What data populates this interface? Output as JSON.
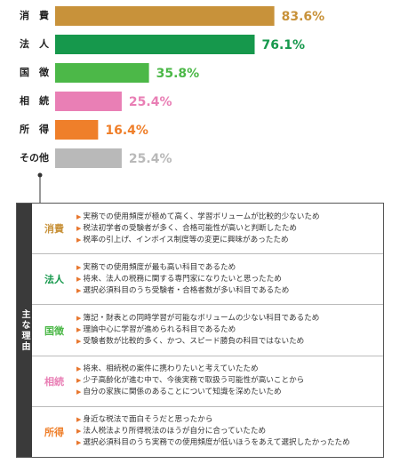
{
  "chart_data": {
    "type": "bar",
    "orientation": "horizontal",
    "categories": [
      "消　費",
      "法　人",
      "国　徴",
      "相　続",
      "所　得",
      "その他"
    ],
    "values": [
      83.6,
      76.1,
      35.8,
      25.4,
      16.4,
      25.4
    ],
    "value_labels": [
      "83.6%",
      "76.1%",
      "35.8%",
      "25.4%",
      "16.4%",
      "25.4%"
    ],
    "colors": [
      "#c8923a",
      "#16984c",
      "#4cb848",
      "#e97fb5",
      "#ef7f2a",
      "#b9b9b9"
    ]
  },
  "reasons": {
    "title": "主な理由",
    "groups": [
      {
        "label": "消費",
        "items": [
          "実務での使用頻度が極めて高く、学習ボリュームが比較的少ないため",
          "税法初学者の受験者が多く、合格可能性が高いと判断したため",
          "税率の引上げ、インボイス制度等の変更に興味があったため"
        ]
      },
      {
        "label": "法人",
        "items": [
          "実務での使用頻度が最も高い科目であるため",
          "将来、法人の税務に関する専門家になりたいと思ったため",
          "選択必須科目のうち受験者・合格者数が多い科目であるため"
        ]
      },
      {
        "label": "国徴",
        "items": [
          "簿記・財表との同時学習が可能なボリュームの少ない科目であるため",
          "理論中心に学習が進められる科目であるため",
          "受験者数が比較的多く、かつ、スピード勝負の科目ではないため"
        ]
      },
      {
        "label": "相続",
        "items": [
          "将来、相続税の案件に携わりたいと考えていたため",
          "少子高齢化が進む中で、今後実務で取扱う可能性が高いことから",
          "自分の家族に関係のあることについて知識を深めたいため"
        ]
      },
      {
        "label": "所得",
        "items": [
          "身近な税法で面白そうだと思ったから",
          "法人税法より所得税法のほうが自分に合っていたため",
          "選択必須科目のうち実務での使用頻度が低いほうをあえて選択したかったため"
        ]
      }
    ]
  }
}
